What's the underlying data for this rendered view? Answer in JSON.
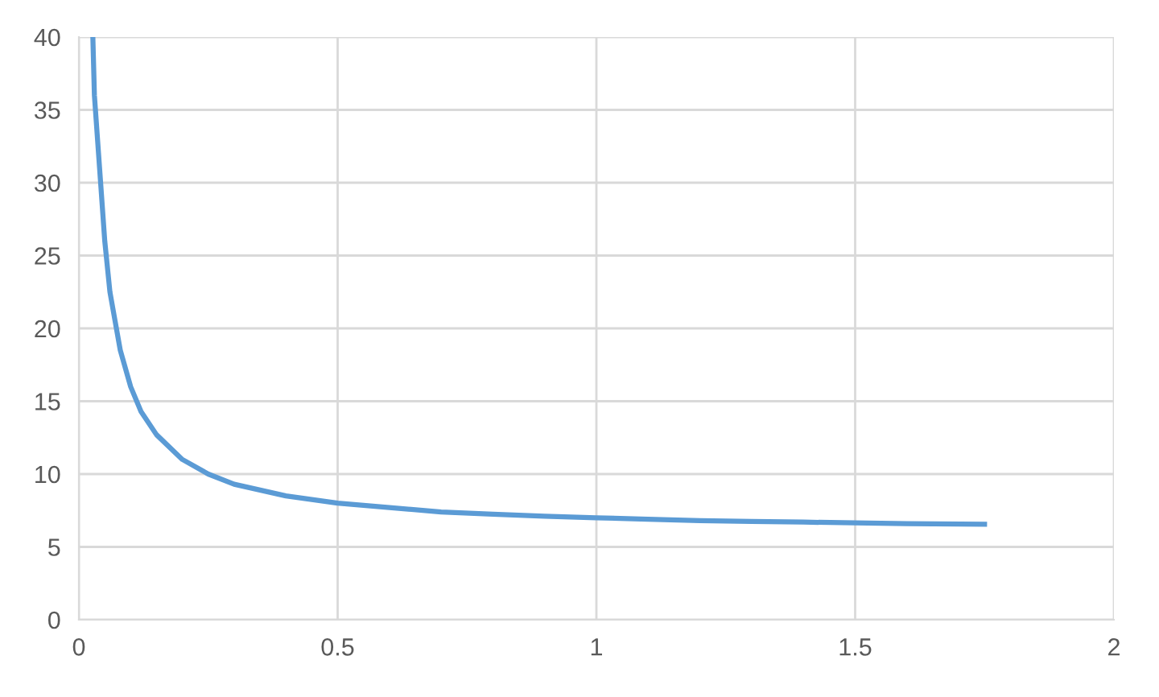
{
  "chart_data": {
    "type": "line",
    "x": [
      0.027,
      0.03,
      0.04,
      0.05,
      0.06,
      0.07,
      0.08,
      0.1,
      0.12,
      0.15,
      0.2,
      0.25,
      0.3,
      0.35,
      0.4,
      0.5,
      0.6,
      0.7,
      0.8,
      0.9,
      1.0,
      1.1,
      1.2,
      1.3,
      1.4,
      1.5,
      1.6,
      1.75
    ],
    "series": [
      {
        "color": "#5b9bd5",
        "values": [
          40,
          36,
          31,
          26,
          22.5,
          20.5,
          18.5,
          16,
          14.3,
          12.7,
          11,
          10,
          9.3,
          8.9,
          8.5,
          8,
          7.7,
          7.4,
          7.25,
          7.1,
          7,
          6.9,
          6.8,
          6.75,
          6.7,
          6.65,
          6.6,
          6.55
        ]
      }
    ],
    "xlim": [
      0,
      2
    ],
    "xticks": [
      0,
      0.5,
      1,
      1.5,
      2
    ],
    "ylim": [
      0,
      40
    ],
    "yticks": [
      0,
      5,
      10,
      15,
      20,
      25,
      30,
      35,
      40
    ],
    "grid": true,
    "marker": "none",
    "line_style": "solid",
    "legend": false
  }
}
